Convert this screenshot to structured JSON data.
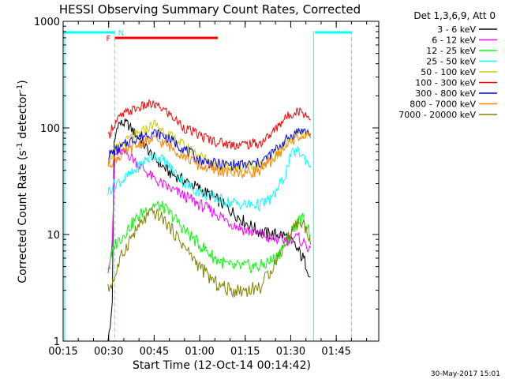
{
  "chart_data": {
    "type": "line",
    "title": "HESSI Observing Summary Count Rates, Corrected",
    "xlabel": "Start Time (12-Oct-14 00:14:42)",
    "ylabel": "Corrected Count Rate (s",
    "ylabel_sup": "-1",
    "ylabel_tail": " detector",
    "ylabel_sup2": "-1",
    "ylabel_close": ")",
    "y_scale": "log",
    "xlim": [
      15,
      119
    ],
    "ylim": [
      1,
      1000
    ],
    "x_tick_labels": [
      "00:15",
      "00:30",
      "00:45",
      "01:00",
      "01:15",
      "01:30",
      "01:45"
    ],
    "x_tick_minutes": [
      15,
      30,
      45,
      60,
      75,
      90,
      105
    ],
    "y_tick_labels": [
      "1",
      "10",
      "100",
      "1000"
    ],
    "y_tick_values": [
      1,
      10,
      100,
      1000
    ],
    "legend_title": "Det 1,3,6,9, Att 0",
    "legend_placement": "right",
    "date_stamp": "30-May-2017 15:01",
    "series": [
      {
        "name": "3 - 6 keV",
        "color": "#000000",
        "x": [
          29.8,
          30.5,
          31.2,
          31.8,
          33,
          36,
          40,
          45,
          50,
          55,
          60,
          65,
          70,
          75,
          80,
          84,
          87,
          89,
          91,
          92.5,
          94,
          95.5,
          96.5
        ],
        "y": [
          1,
          1.3,
          2.5,
          70,
          110,
          110,
          80,
          52,
          38,
          32,
          27,
          22,
          17,
          13,
          10.5,
          10,
          10,
          9.5,
          8,
          7,
          6,
          5,
          4
        ]
      },
      {
        "name": "6 - 12 keV",
        "color": "#ff00ff",
        "x": [
          29.8,
          30.5,
          31.2,
          32,
          34,
          37,
          40,
          45,
          50,
          55,
          60,
          65,
          70,
          75,
          80,
          84,
          87,
          89,
          91,
          93,
          95,
          96.5
        ],
        "y": [
          5,
          6,
          8,
          55,
          60,
          55,
          45,
          33,
          27,
          23,
          19,
          16,
          13,
          11,
          10,
          9,
          9,
          9,
          9.5,
          9,
          8,
          7.5
        ]
      },
      {
        "name": "12 - 25 keV",
        "color": "#00ff00",
        "x": [
          29.8,
          31,
          32,
          35,
          38,
          42,
          45,
          48,
          52,
          55,
          60,
          65,
          70,
          75,
          80,
          85,
          89,
          92,
          94,
          95.5,
          96.5
        ],
        "y": [
          5,
          6,
          8,
          10,
          13,
          17,
          19,
          18,
          14,
          11,
          8,
          6,
          5,
          5,
          5,
          6,
          9,
          13,
          14,
          12,
          10
        ]
      },
      {
        "name": "25 - 50 keV",
        "color": "#00ffff",
        "x": [
          29.8,
          31,
          32,
          35,
          38,
          42,
          45,
          48,
          52,
          55,
          60,
          65,
          70,
          75,
          80,
          84,
          88,
          90,
          92,
          94,
          95.5,
          96.5
        ],
        "y": [
          25,
          28,
          30,
          33,
          38,
          50,
          55,
          50,
          38,
          30,
          25,
          22,
          20,
          19,
          19,
          22,
          35,
          55,
          62,
          55,
          48,
          45
        ]
      },
      {
        "name": "50 - 100 keV",
        "color": "#cccc00",
        "x": [
          29.8,
          31,
          33,
          37,
          40,
          43,
          45,
          47,
          50,
          55,
          60,
          65,
          70,
          75,
          80,
          85,
          88,
          91,
          93,
          95,
          96.5
        ],
        "y": [
          50,
          55,
          65,
          80,
          88,
          100,
          110,
          100,
          85,
          68,
          55,
          45,
          42,
          42,
          44,
          55,
          70,
          85,
          88,
          85,
          80
        ]
      },
      {
        "name": "100 - 300 keV",
        "color": "#ff0000",
        "x": [
          29.8,
          31,
          33,
          36,
          40,
          43,
          45,
          48,
          52,
          55,
          60,
          65,
          70,
          75,
          80,
          84,
          87,
          90,
          92,
          94,
          95.5,
          96.5
        ],
        "y": [
          80,
          100,
          120,
          140,
          155,
          165,
          165,
          150,
          120,
          100,
          85,
          75,
          70,
          70,
          72,
          90,
          115,
          135,
          145,
          140,
          130,
          120
        ]
      },
      {
        "name": "300 - 800 keV",
        "color": "#0000ff",
        "x": [
          29.8,
          31,
          34,
          37,
          40,
          43,
          45,
          48,
          52,
          56,
          60,
          65,
          70,
          75,
          80,
          84,
          88,
          91,
          93,
          95,
          96.5
        ],
        "y": [
          55,
          58,
          65,
          75,
          82,
          88,
          90,
          85,
          72,
          60,
          50,
          46,
          45,
          45,
          47,
          58,
          75,
          88,
          95,
          92,
          88
        ]
      },
      {
        "name": "800 - 7000 keV",
        "color": "#ff8000",
        "x": [
          29.8,
          31,
          34,
          37,
          40,
          43,
          45,
          48,
          52,
          56,
          60,
          65,
          70,
          75,
          80,
          84,
          88,
          91,
          93,
          95,
          96.5
        ],
        "y": [
          45,
          48,
          55,
          63,
          70,
          75,
          78,
          72,
          62,
          52,
          44,
          40,
          38,
          38,
          40,
          50,
          65,
          78,
          85,
          83,
          80
        ]
      },
      {
        "name": "7000 - 20000 keV",
        "color": "#808000",
        "x": [
          29.8,
          31,
          32,
          34,
          37,
          40,
          43,
          45,
          48,
          52,
          56,
          60,
          65,
          70,
          75,
          80,
          84,
          88,
          91,
          93,
          94.5,
          96,
          96.5
        ],
        "y": [
          3,
          3.5,
          4,
          6,
          9,
          12,
          15,
          16,
          14,
          10,
          7,
          5,
          3.5,
          3,
          3,
          3.2,
          5,
          8,
          12,
          13,
          12,
          10,
          8
        ]
      }
    ],
    "spacecraft_flags": [
      {
        "label": "N",
        "color": "#00ffff",
        "segments": [
          [
            15,
            32
          ],
          [
            98,
            110
          ]
        ]
      },
      {
        "label": "F",
        "color": "#ff0000",
        "segments": [
          [
            32,
            66
          ]
        ]
      }
    ],
    "vertical_markers": [
      {
        "x": 32,
        "style": "dashed",
        "color": "#00ffff"
      },
      {
        "x": 97.5,
        "style": "solid",
        "color": "#00ffff"
      },
      {
        "x": 110,
        "style": "dashed",
        "color": "#00ffff"
      },
      {
        "x": 15.5,
        "style": "solid",
        "color": "#00ffff"
      }
    ]
  }
}
